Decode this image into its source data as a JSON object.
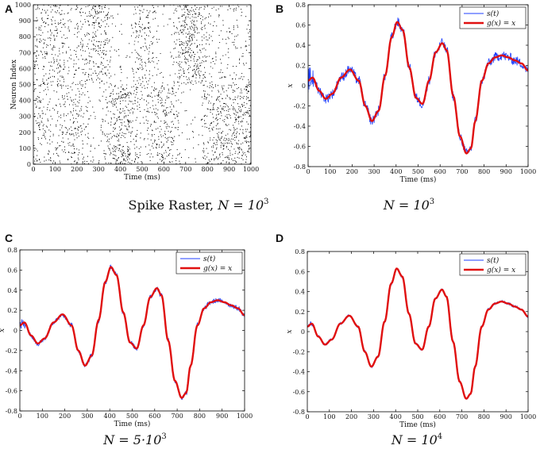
{
  "colors": {
    "signal": "#1f3fff",
    "fit": "#e01010",
    "axis": "#000000",
    "spike": "#000000"
  },
  "chart_data": [
    {
      "type": "scatter",
      "panel_label": "A",
      "caption": {
        "text": "Spike Raster, ",
        "n_text": "N = 10",
        "n_sup": "3"
      },
      "xlabel": "Time (ms)",
      "ylabel": "Neuron Index",
      "xlim": [
        0,
        1000
      ],
      "ylim": [
        0,
        1000
      ],
      "xticks": [
        0,
        100,
        200,
        300,
        400,
        500,
        600,
        700,
        800,
        900,
        1000
      ],
      "yticks": [
        0,
        100,
        200,
        300,
        400,
        500,
        600,
        700,
        800,
        900,
        1000
      ],
      "description": "spike raster of 1000 neurons over 1000 ms"
    },
    {
      "type": "line",
      "panel_label": "B",
      "caption": {
        "text": "",
        "n_text": "N = 10",
        "n_sup": "3"
      },
      "xlabel": "Time (ms)",
      "ylabel": "x",
      "xlim": [
        0,
        1000
      ],
      "ylim": [
        -0.8,
        0.8
      ],
      "xticks": [
        0,
        100,
        200,
        300,
        400,
        500,
        600,
        700,
        800,
        900,
        1000
      ],
      "yticks": [
        -0.8,
        -0.6,
        -0.4,
        -0.2,
        0,
        0.2,
        0.4,
        0.6,
        0.8
      ],
      "noise": 0.05,
      "legend": {
        "position": "top-right",
        "entries": [
          "s(t)",
          "g(x) = x"
        ]
      },
      "series": [
        {
          "name": "s(t)",
          "style": "noisy-signal"
        },
        {
          "name": "g(x) = x",
          "x": [
            0,
            20,
            50,
            80,
            110,
            150,
            190,
            230,
            260,
            290,
            320,
            350,
            380,
            405,
            430,
            460,
            490,
            520,
            550,
            580,
            610,
            630,
            660,
            690,
            720,
            740,
            760,
            790,
            820,
            850,
            880,
            910,
            940,
            970,
            1000
          ],
          "y": [
            0.05,
            0.08,
            -0.05,
            -0.13,
            -0.08,
            0.08,
            0.16,
            0.05,
            -0.2,
            -0.35,
            -0.25,
            0.1,
            0.48,
            0.63,
            0.55,
            0.18,
            -0.12,
            -0.18,
            0.05,
            0.33,
            0.42,
            0.35,
            -0.1,
            -0.5,
            -0.67,
            -0.62,
            -0.35,
            0.05,
            0.22,
            0.28,
            0.3,
            0.28,
            0.25,
            0.22,
            0.15
          ]
        }
      ]
    },
    {
      "type": "line",
      "panel_label": "C",
      "caption": {
        "text": "",
        "n_text": "N = 5·10",
        "n_sup": "3"
      },
      "xlabel": "Time (ms)",
      "ylabel": "x",
      "xlim": [
        0,
        1000
      ],
      "ylim": [
        -0.8,
        0.8
      ],
      "xticks": [
        0,
        100,
        200,
        300,
        400,
        500,
        600,
        700,
        800,
        900,
        1000
      ],
      "yticks": [
        -0.8,
        -0.6,
        -0.4,
        -0.2,
        0,
        0.2,
        0.4,
        0.6,
        0.8
      ],
      "noise": 0.025,
      "legend": {
        "position": "top-right",
        "entries": [
          "s(t)",
          "g(x) = x"
        ]
      },
      "series": [
        {
          "name": "s(t)",
          "style": "noisy-signal"
        },
        {
          "name": "g(x) = x",
          "x": [
            0,
            20,
            50,
            80,
            110,
            150,
            190,
            230,
            260,
            290,
            320,
            350,
            380,
            405,
            430,
            460,
            490,
            520,
            550,
            580,
            610,
            630,
            660,
            690,
            720,
            740,
            760,
            790,
            820,
            850,
            880,
            910,
            940,
            970,
            1000
          ],
          "y": [
            0.05,
            0.08,
            -0.05,
            -0.13,
            -0.08,
            0.08,
            0.16,
            0.05,
            -0.2,
            -0.35,
            -0.25,
            0.1,
            0.48,
            0.63,
            0.55,
            0.18,
            -0.12,
            -0.18,
            0.05,
            0.33,
            0.42,
            0.35,
            -0.1,
            -0.5,
            -0.67,
            -0.62,
            -0.35,
            0.05,
            0.22,
            0.28,
            0.3,
            0.28,
            0.25,
            0.22,
            0.15
          ]
        }
      ]
    },
    {
      "type": "line",
      "panel_label": "D",
      "caption": {
        "text": "",
        "n_text": "N = 10",
        "n_sup": "4"
      },
      "xlabel": "Time (ms)",
      "ylabel": "x",
      "xlim": [
        0,
        1000
      ],
      "ylim": [
        -0.8,
        0.8
      ],
      "xticks": [
        0,
        100,
        200,
        300,
        400,
        500,
        600,
        700,
        800,
        900,
        1000
      ],
      "yticks": [
        -0.8,
        -0.6,
        -0.4,
        -0.2,
        0,
        0.2,
        0.4,
        0.6,
        0.8
      ],
      "noise": 0.012,
      "legend": {
        "position": "top-right",
        "entries": [
          "s(t)",
          "g(x) = x"
        ]
      },
      "series": [
        {
          "name": "s(t)",
          "style": "noisy-signal"
        },
        {
          "name": "g(x) = x",
          "x": [
            0,
            20,
            50,
            80,
            110,
            150,
            190,
            230,
            260,
            290,
            320,
            350,
            380,
            405,
            430,
            460,
            490,
            520,
            550,
            580,
            610,
            630,
            660,
            690,
            720,
            740,
            760,
            790,
            820,
            850,
            880,
            910,
            940,
            970,
            1000
          ],
          "y": [
            0.05,
            0.08,
            -0.05,
            -0.13,
            -0.08,
            0.08,
            0.16,
            0.05,
            -0.2,
            -0.35,
            -0.25,
            0.1,
            0.48,
            0.63,
            0.55,
            0.18,
            -0.12,
            -0.18,
            0.05,
            0.33,
            0.42,
            0.35,
            -0.1,
            -0.5,
            -0.67,
            -0.62,
            -0.35,
            0.05,
            0.22,
            0.28,
            0.3,
            0.28,
            0.25,
            0.22,
            0.15
          ]
        }
      ]
    }
  ]
}
